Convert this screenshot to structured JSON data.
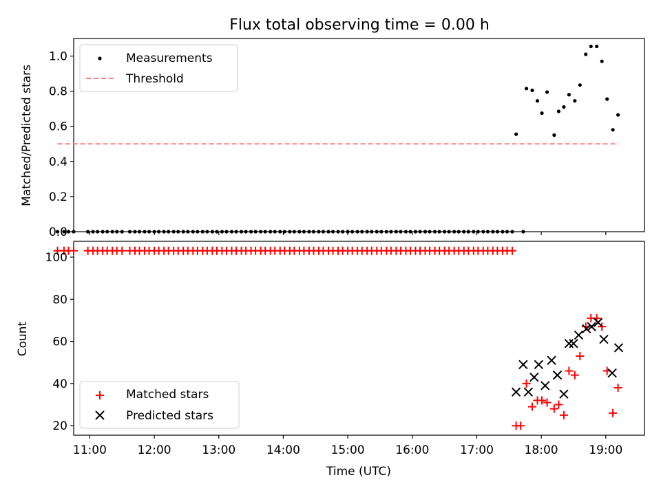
{
  "title": "Flux total observing time = 0.00 h",
  "xlabel": "Time (UTC)",
  "colors": {
    "measure": "#000000",
    "threshold": "#ff7f7f",
    "matched": "#ff0000",
    "predicted": "#000000"
  },
  "chart_data": [
    {
      "type": "scatter",
      "ylabel": "Matched/Predicted stars",
      "xlim": [
        10.75,
        19.6
      ],
      "ylim": [
        0.0,
        1.1
      ],
      "yticks": [
        "0.0",
        "0.2",
        "0.4",
        "0.6",
        "0.8",
        "1.0"
      ],
      "legend": [
        "Measurements",
        "Threshold"
      ],
      "legend_loc": "upper-left",
      "threshold": {
        "x": [
          10.5,
          19.2
        ],
        "y": 0.5
      },
      "series": [
        {
          "name": "Measurements",
          "x": [
            10.5,
            10.6,
            10.67,
            10.75,
            10.97,
            11.05,
            11.12,
            11.2,
            11.27,
            11.35,
            11.42,
            11.5,
            11.62,
            11.7,
            11.77,
            11.85,
            11.92,
            12.0,
            12.07,
            12.15,
            12.22,
            12.3,
            12.37,
            12.45,
            12.52,
            12.6,
            12.67,
            12.75,
            12.82,
            12.9,
            12.97,
            13.05,
            13.12,
            13.2,
            13.27,
            13.35,
            13.42,
            13.5,
            13.57,
            13.65,
            13.72,
            13.8,
            13.87,
            13.95,
            14.02,
            14.1,
            14.17,
            14.25,
            14.32,
            14.4,
            14.47,
            14.55,
            14.62,
            14.7,
            14.77,
            14.85,
            14.92,
            15.0,
            15.07,
            15.15,
            15.22,
            15.3,
            15.37,
            15.45,
            15.52,
            15.6,
            15.67,
            15.75,
            15.82,
            15.9,
            15.97,
            16.05,
            16.12,
            16.2,
            16.27,
            16.35,
            16.42,
            16.5,
            16.57,
            16.65,
            16.72,
            16.8,
            16.87,
            16.95,
            17.02,
            17.1,
            17.17,
            17.25,
            17.32,
            17.4,
            17.47,
            17.55,
            17.72,
            17.61,
            17.77,
            17.86,
            17.94,
            18.01,
            18.09,
            18.2,
            18.27,
            18.35,
            18.43,
            18.52,
            18.6,
            18.69,
            18.77,
            18.86,
            18.94,
            19.02,
            19.11,
            19.19
          ],
          "y": [
            0,
            0,
            0,
            0,
            0,
            0,
            0,
            0,
            0,
            0,
            0,
            0,
            0,
            0,
            0,
            0,
            0,
            0,
            0,
            0,
            0,
            0,
            0,
            0,
            0,
            0,
            0,
            0,
            0,
            0,
            0,
            0,
            0,
            0,
            0,
            0,
            0,
            0,
            0,
            0,
            0,
            0,
            0,
            0,
            0,
            0,
            0,
            0,
            0,
            0,
            0,
            0,
            0,
            0,
            0,
            0,
            0,
            0,
            0,
            0,
            0,
            0,
            0,
            0,
            0,
            0,
            0,
            0,
            0,
            0,
            0,
            0,
            0,
            0,
            0,
            0,
            0,
            0,
            0,
            0,
            0,
            0,
            0,
            0,
            0,
            0,
            0,
            0,
            0,
            0,
            0,
            0,
            0,
            0.555,
            0.815,
            0.805,
            0.745,
            0.675,
            0.795,
            0.55,
            0.685,
            0.71,
            0.78,
            0.745,
            0.835,
            1.01,
            1.055,
            1.055,
            0.97,
            0.755,
            0.58,
            0.665
          ]
        }
      ]
    },
    {
      "type": "scatter",
      "ylabel": "Count",
      "xlim": [
        10.75,
        19.6
      ],
      "ylim": [
        15.5,
        107.5
      ],
      "yticks": [
        "20",
        "40",
        "60",
        "80",
        "100"
      ],
      "xticks": [
        "11:00",
        "12:00",
        "13:00",
        "14:00",
        "15:00",
        "16:00",
        "17:00",
        "18:00",
        "19:00"
      ],
      "legend": [
        "Matched stars",
        "Predicted stars"
      ],
      "legend_loc": "lower-left",
      "series": [
        {
          "name": "Matched stars",
          "x": [
            10.5,
            10.6,
            10.67,
            10.75,
            10.97,
            11.05,
            11.12,
            11.2,
            11.27,
            11.35,
            11.42,
            11.5,
            11.62,
            11.7,
            11.77,
            11.85,
            11.92,
            12.0,
            12.07,
            12.15,
            12.22,
            12.3,
            12.37,
            12.45,
            12.52,
            12.6,
            12.67,
            12.75,
            12.82,
            12.9,
            12.97,
            13.05,
            13.12,
            13.2,
            13.27,
            13.35,
            13.42,
            13.5,
            13.57,
            13.65,
            13.72,
            13.8,
            13.87,
            13.95,
            14.02,
            14.1,
            14.17,
            14.25,
            14.32,
            14.4,
            14.47,
            14.55,
            14.62,
            14.7,
            14.77,
            14.85,
            14.92,
            15.0,
            15.07,
            15.15,
            15.22,
            15.3,
            15.37,
            15.45,
            15.52,
            15.6,
            15.67,
            15.75,
            15.82,
            15.9,
            15.97,
            16.05,
            16.12,
            16.2,
            16.27,
            16.35,
            16.42,
            16.5,
            16.57,
            16.65,
            16.72,
            16.8,
            16.87,
            16.95,
            17.02,
            17.1,
            17.17,
            17.25,
            17.32,
            17.4,
            17.47,
            17.55,
            17.61,
            17.68,
            17.77,
            17.86,
            17.94,
            18.01,
            18.09,
            18.2,
            18.27,
            18.35,
            18.43,
            18.52,
            18.6,
            18.69,
            18.77,
            18.86,
            18.94,
            19.02,
            19.11,
            19.19
          ],
          "y": [
            103,
            103,
            103,
            103,
            103,
            103,
            103,
            103,
            103,
            103,
            103,
            103,
            103,
            103,
            103,
            103,
            103,
            103,
            103,
            103,
            103,
            103,
            103,
            103,
            103,
            103,
            103,
            103,
            103,
            103,
            103,
            103,
            103,
            103,
            103,
            103,
            103,
            103,
            103,
            103,
            103,
            103,
            103,
            103,
            103,
            103,
            103,
            103,
            103,
            103,
            103,
            103,
            103,
            103,
            103,
            103,
            103,
            103,
            103,
            103,
            103,
            103,
            103,
            103,
            103,
            103,
            103,
            103,
            103,
            103,
            103,
            103,
            103,
            103,
            103,
            103,
            103,
            103,
            103,
            103,
            103,
            103,
            103,
            103,
            103,
            103,
            103,
            103,
            103,
            103,
            103,
            103,
            20,
            20,
            40,
            29,
            32,
            32,
            31,
            28,
            30,
            25,
            46,
            44,
            53,
            67,
            71,
            71,
            67,
            46,
            26,
            38
          ]
        },
        {
          "name": "Predicted stars",
          "x": [
            17.61,
            17.72,
            17.8,
            17.89,
            17.96,
            18.06,
            18.16,
            18.25,
            18.35,
            18.43,
            18.5,
            18.58,
            18.7,
            18.78,
            18.88,
            18.97,
            19.1,
            19.2
          ],
          "y": [
            36,
            49,
            36,
            43,
            49,
            39,
            51,
            44,
            35,
            59,
            59,
            63,
            66,
            67,
            69,
            61,
            45,
            57
          ]
        }
      ]
    }
  ]
}
